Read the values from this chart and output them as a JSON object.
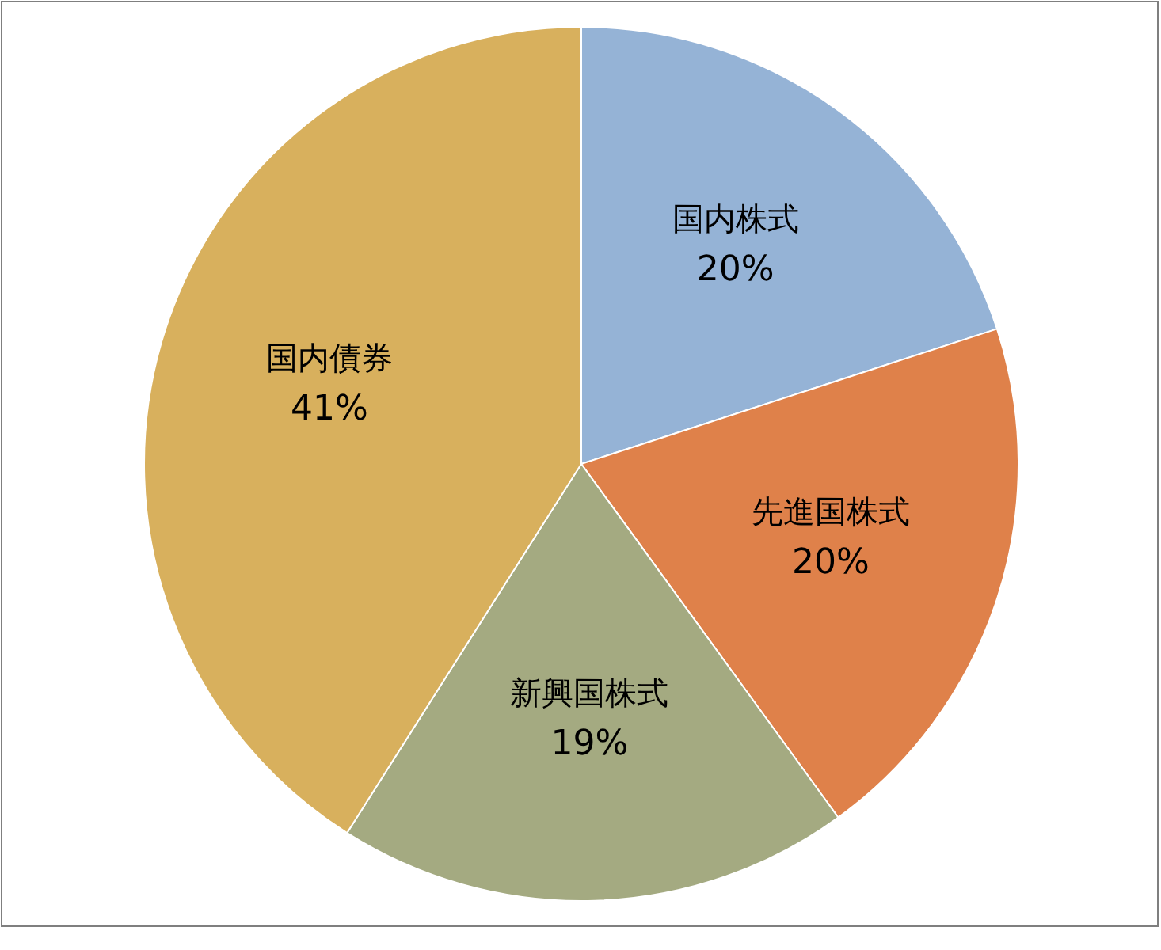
{
  "chart_data": {
    "type": "pie",
    "categories": [
      "国内株式",
      "先進国株式",
      "新興国株式",
      "国内債券"
    ],
    "values": [
      20,
      20,
      19,
      41
    ],
    "colors": [
      "#95b3d6",
      "#df814a",
      "#a4aa81",
      "#d8b05d"
    ],
    "value_labels": [
      "20%",
      "20%",
      "19%",
      "41%"
    ]
  }
}
